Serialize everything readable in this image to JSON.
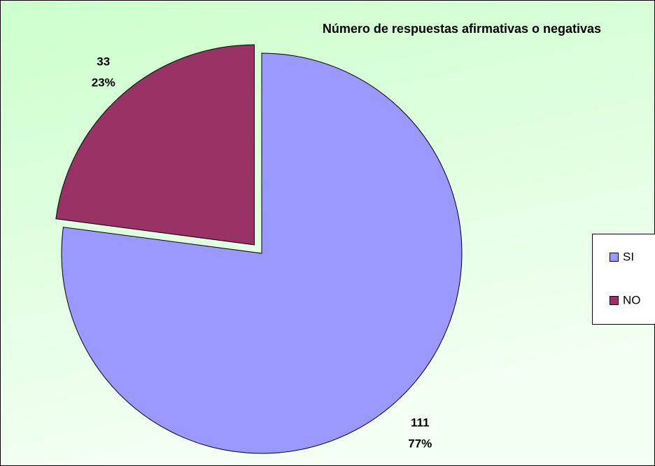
{
  "chart_data": {
    "type": "pie",
    "title": "Número de respuestas afirmativas o negativas",
    "categories": [
      "SI",
      "NO"
    ],
    "values": [
      111,
      33
    ],
    "percent_labels": [
      "77%",
      "23%"
    ],
    "colors": [
      "#9999ff",
      "#993366"
    ],
    "exploded": [
      false,
      true
    ],
    "legend": "right"
  }
}
